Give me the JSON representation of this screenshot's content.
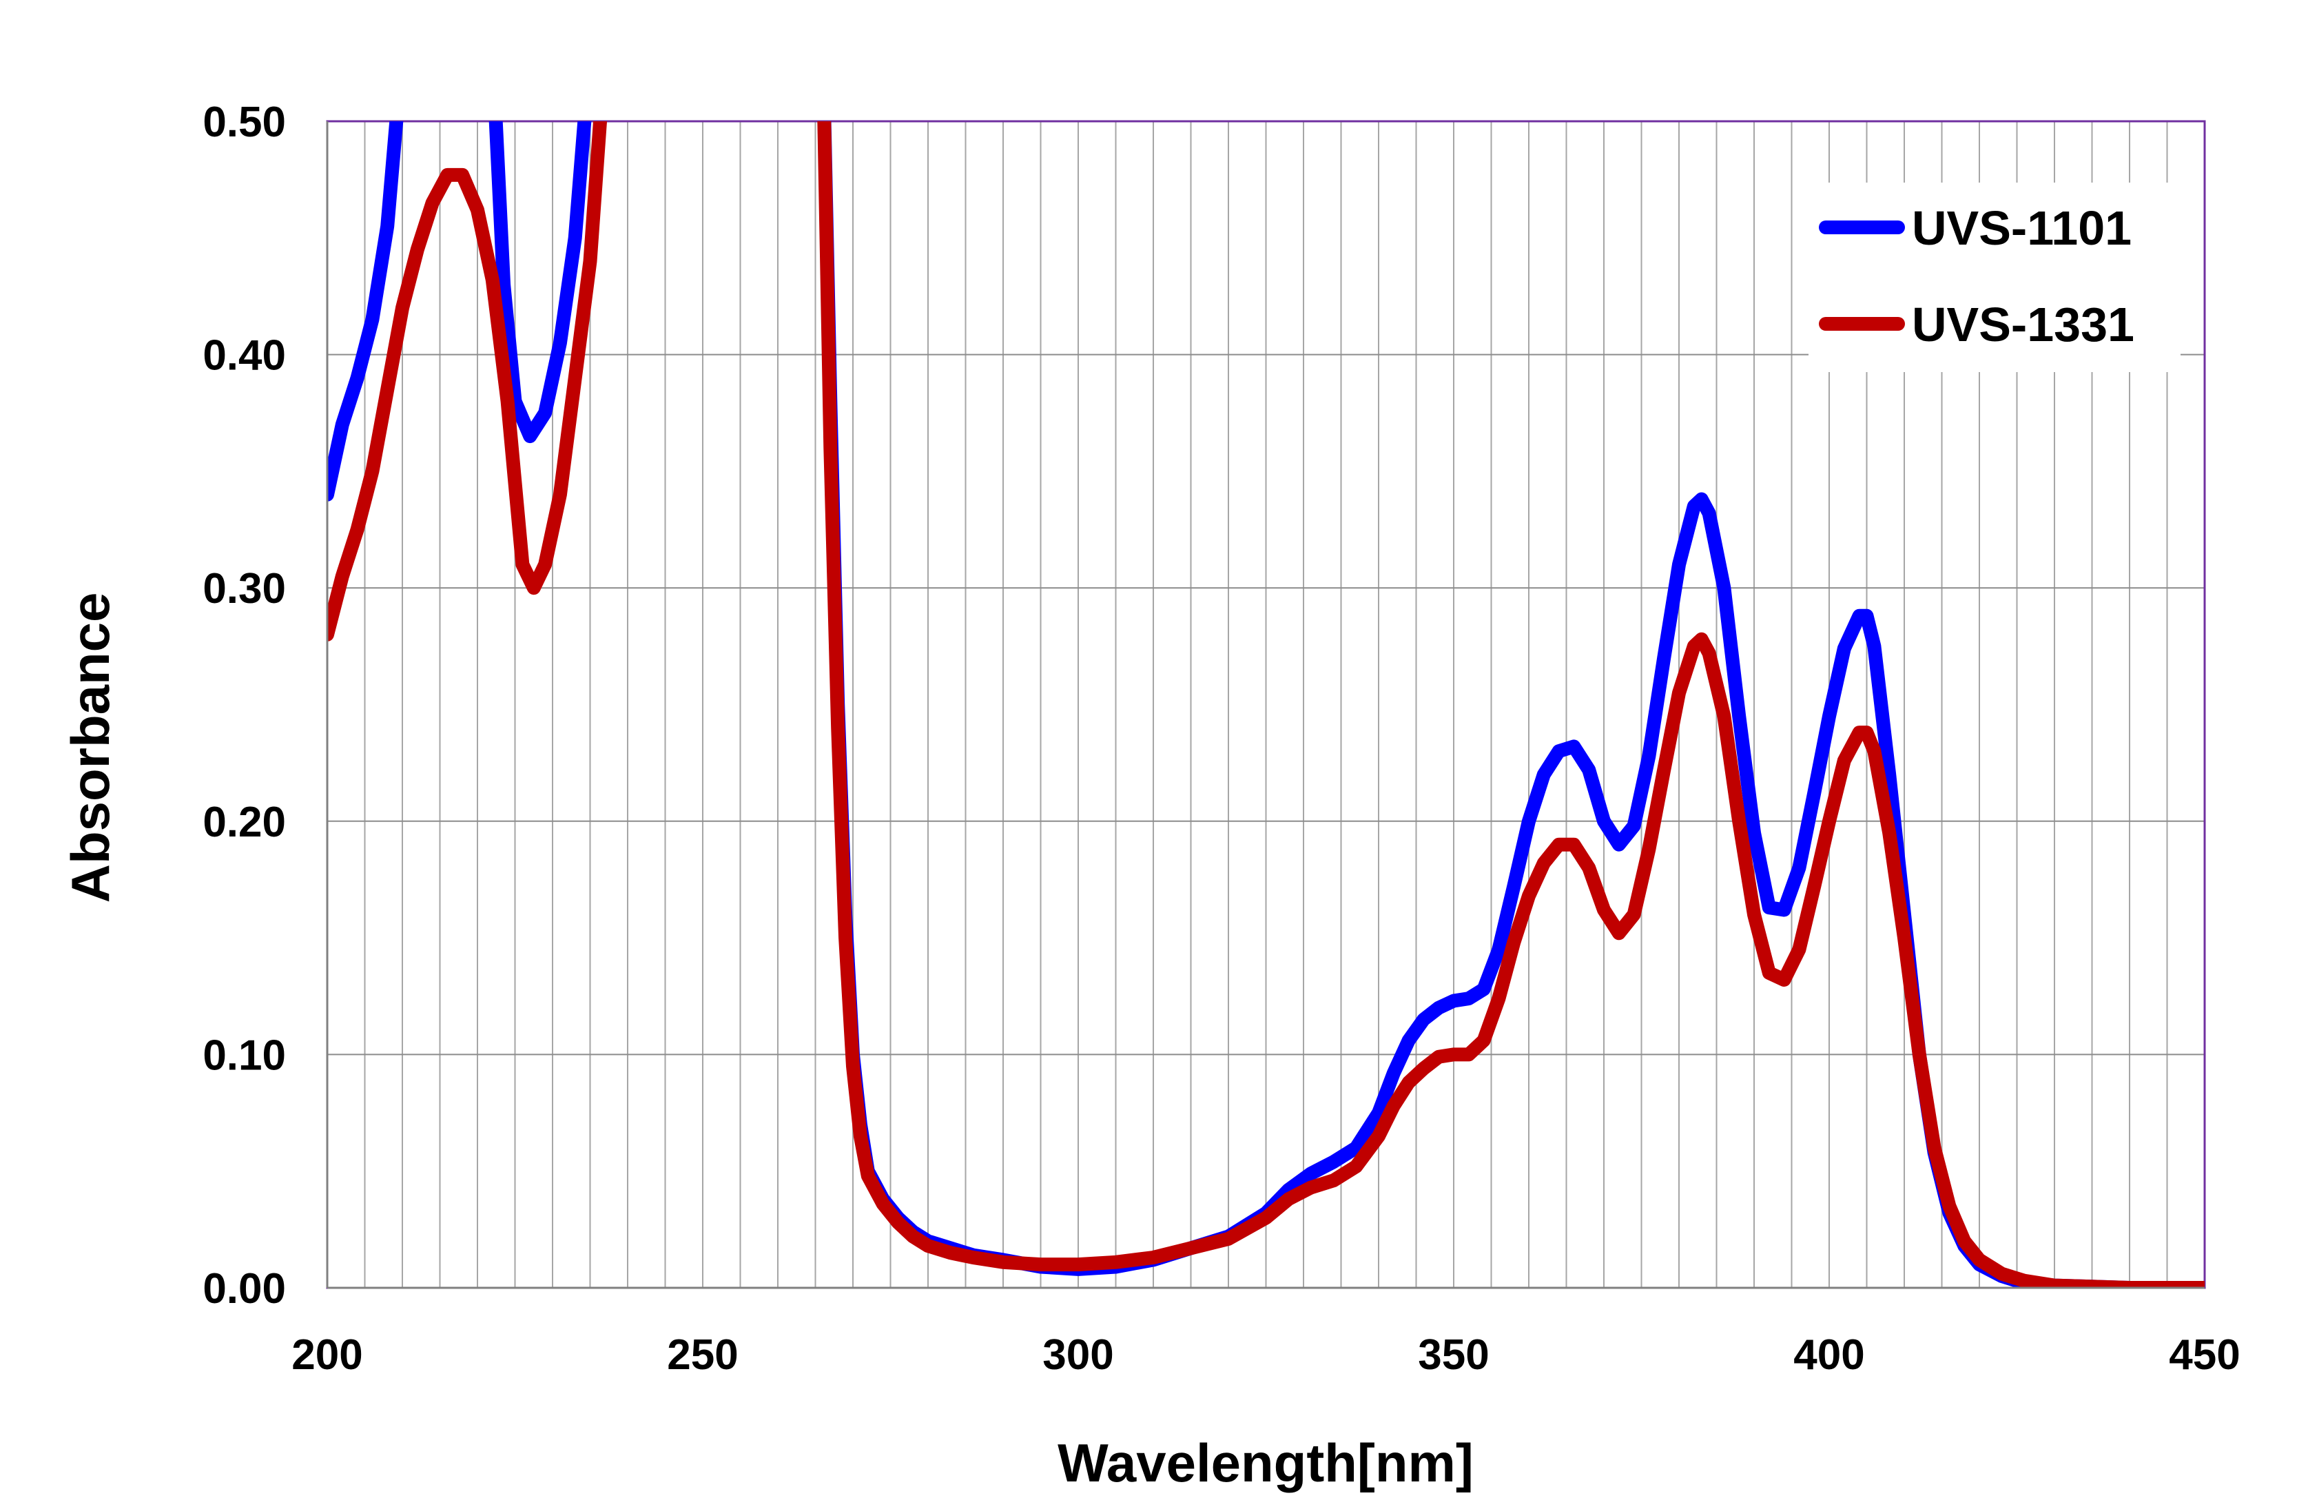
{
  "chart_data": {
    "type": "line",
    "title": "",
    "xlabel": "Wavelength[nm]",
    "ylabel": "Absorbance",
    "xlim": [
      200,
      450
    ],
    "ylim": [
      0,
      0.5
    ],
    "x_ticks": [
      200,
      250,
      300,
      350,
      400,
      450
    ],
    "x_tick_labels": [
      "200",
      "250",
      "300",
      "350",
      "400",
      "450"
    ],
    "y_ticks": [
      0,
      0.1,
      0.2,
      0.3,
      0.4,
      0.5
    ],
    "y_tick_labels": [
      "0.00",
      "0.10",
      "0.20",
      "0.30",
      "0.40",
      "0.50"
    ],
    "x_minor_grid_step": 5,
    "grid": true,
    "legend_position": "top-right",
    "series": [
      {
        "name": "UVS-1101",
        "color": "#0000ff",
        "points": [
          [
            200,
            0.34
          ],
          [
            202,
            0.37
          ],
          [
            204,
            0.39
          ],
          [
            206,
            0.415
          ],
          [
            208,
            0.455
          ],
          [
            210,
            0.5
          ],
          [
            222,
            0.5
          ],
          [
            223.5,
            0.43
          ],
          [
            225,
            0.38
          ],
          [
            227,
            0.365
          ],
          [
            229,
            0.375
          ],
          [
            231,
            0.405
          ],
          [
            233,
            0.45
          ],
          [
            235,
            0.5
          ],
          [
            266,
            0.5
          ],
          [
            267,
            0.38
          ],
          [
            268,
            0.25
          ],
          [
            269,
            0.16
          ],
          [
            270,
            0.1
          ],
          [
            271,
            0.07
          ],
          [
            272,
            0.05
          ],
          [
            274,
            0.038
          ],
          [
            276,
            0.03
          ],
          [
            278,
            0.024
          ],
          [
            280,
            0.02
          ],
          [
            283,
            0.017
          ],
          [
            286,
            0.014
          ],
          [
            290,
            0.012
          ],
          [
            295,
            0.009
          ],
          [
            300,
            0.008
          ],
          [
            305,
            0.009
          ],
          [
            310,
            0.012
          ],
          [
            315,
            0.017
          ],
          [
            320,
            0.022
          ],
          [
            325,
            0.032
          ],
          [
            328,
            0.042
          ],
          [
            331,
            0.049
          ],
          [
            334,
            0.054
          ],
          [
            337,
            0.06
          ],
          [
            340,
            0.075
          ],
          [
            342,
            0.092
          ],
          [
            344,
            0.106
          ],
          [
            346,
            0.115
          ],
          [
            348,
            0.12
          ],
          [
            350,
            0.123
          ],
          [
            352,
            0.124
          ],
          [
            354,
            0.128
          ],
          [
            356,
            0.145
          ],
          [
            358,
            0.172
          ],
          [
            360,
            0.2
          ],
          [
            362,
            0.22
          ],
          [
            364,
            0.23
          ],
          [
            366,
            0.232
          ],
          [
            368,
            0.222
          ],
          [
            370,
            0.2
          ],
          [
            372,
            0.19
          ],
          [
            374,
            0.198
          ],
          [
            376,
            0.228
          ],
          [
            378,
            0.27
          ],
          [
            380,
            0.31
          ],
          [
            382,
            0.335
          ],
          [
            383,
            0.338
          ],
          [
            384,
            0.332
          ],
          [
            386,
            0.3
          ],
          [
            388,
            0.245
          ],
          [
            390,
            0.195
          ],
          [
            392,
            0.163
          ],
          [
            394,
            0.162
          ],
          [
            396,
            0.18
          ],
          [
            398,
            0.212
          ],
          [
            400,
            0.245
          ],
          [
            402,
            0.274
          ],
          [
            404,
            0.288
          ],
          [
            405,
            0.288
          ],
          [
            406,
            0.275
          ],
          [
            408,
            0.22
          ],
          [
            410,
            0.16
          ],
          [
            412,
            0.1
          ],
          [
            414,
            0.058
          ],
          [
            416,
            0.032
          ],
          [
            418,
            0.018
          ],
          [
            420,
            0.01
          ],
          [
            423,
            0.005
          ],
          [
            426,
            0.002
          ],
          [
            430,
            0.001
          ],
          [
            440,
            0.0
          ],
          [
            450,
            0.0
          ]
        ]
      },
      {
        "name": "UVS-1331",
        "color": "#c00000",
        "points": [
          [
            200,
            0.28
          ],
          [
            202,
            0.305
          ],
          [
            204,
            0.325
          ],
          [
            206,
            0.35
          ],
          [
            208,
            0.385
          ],
          [
            210,
            0.42
          ],
          [
            212,
            0.445
          ],
          [
            214,
            0.465
          ],
          [
            216,
            0.477
          ],
          [
            218,
            0.477
          ],
          [
            220,
            0.462
          ],
          [
            222,
            0.432
          ],
          [
            224,
            0.38
          ],
          [
            226,
            0.31
          ],
          [
            227.5,
            0.3
          ],
          [
            229,
            0.31
          ],
          [
            231,
            0.34
          ],
          [
            233,
            0.39
          ],
          [
            235,
            0.44
          ],
          [
            237,
            0.5
          ],
          [
            266,
            0.5
          ],
          [
            267,
            0.36
          ],
          [
            268,
            0.24
          ],
          [
            269,
            0.15
          ],
          [
            270,
            0.095
          ],
          [
            271,
            0.065
          ],
          [
            272,
            0.048
          ],
          [
            274,
            0.036
          ],
          [
            276,
            0.028
          ],
          [
            278,
            0.022
          ],
          [
            280,
            0.018
          ],
          [
            283,
            0.015
          ],
          [
            286,
            0.013
          ],
          [
            290,
            0.011
          ],
          [
            295,
            0.01
          ],
          [
            300,
            0.01
          ],
          [
            305,
            0.011
          ],
          [
            310,
            0.013
          ],
          [
            315,
            0.017
          ],
          [
            320,
            0.021
          ],
          [
            325,
            0.03
          ],
          [
            328,
            0.038
          ],
          [
            331,
            0.043
          ],
          [
            334,
            0.046
          ],
          [
            337,
            0.052
          ],
          [
            340,
            0.065
          ],
          [
            342,
            0.078
          ],
          [
            344,
            0.088
          ],
          [
            346,
            0.094
          ],
          [
            348,
            0.099
          ],
          [
            350,
            0.1
          ],
          [
            352,
            0.1
          ],
          [
            354,
            0.106
          ],
          [
            356,
            0.124
          ],
          [
            358,
            0.148
          ],
          [
            360,
            0.168
          ],
          [
            362,
            0.182
          ],
          [
            364,
            0.19
          ],
          [
            366,
            0.19
          ],
          [
            368,
            0.18
          ],
          [
            370,
            0.162
          ],
          [
            372,
            0.152
          ],
          [
            374,
            0.16
          ],
          [
            376,
            0.188
          ],
          [
            378,
            0.222
          ],
          [
            380,
            0.255
          ],
          [
            382,
            0.275
          ],
          [
            383,
            0.278
          ],
          [
            384,
            0.272
          ],
          [
            386,
            0.245
          ],
          [
            388,
            0.2
          ],
          [
            390,
            0.16
          ],
          [
            392,
            0.135
          ],
          [
            394,
            0.132
          ],
          [
            396,
            0.145
          ],
          [
            398,
            0.172
          ],
          [
            400,
            0.2
          ],
          [
            402,
            0.226
          ],
          [
            404,
            0.238
          ],
          [
            405,
            0.238
          ],
          [
            406,
            0.23
          ],
          [
            408,
            0.195
          ],
          [
            410,
            0.15
          ],
          [
            412,
            0.1
          ],
          [
            414,
            0.06
          ],
          [
            416,
            0.035
          ],
          [
            418,
            0.02
          ],
          [
            420,
            0.012
          ],
          [
            423,
            0.006
          ],
          [
            426,
            0.003
          ],
          [
            430,
            0.001
          ],
          [
            440,
            0.0
          ],
          [
            450,
            0.0
          ]
        ]
      }
    ]
  }
}
